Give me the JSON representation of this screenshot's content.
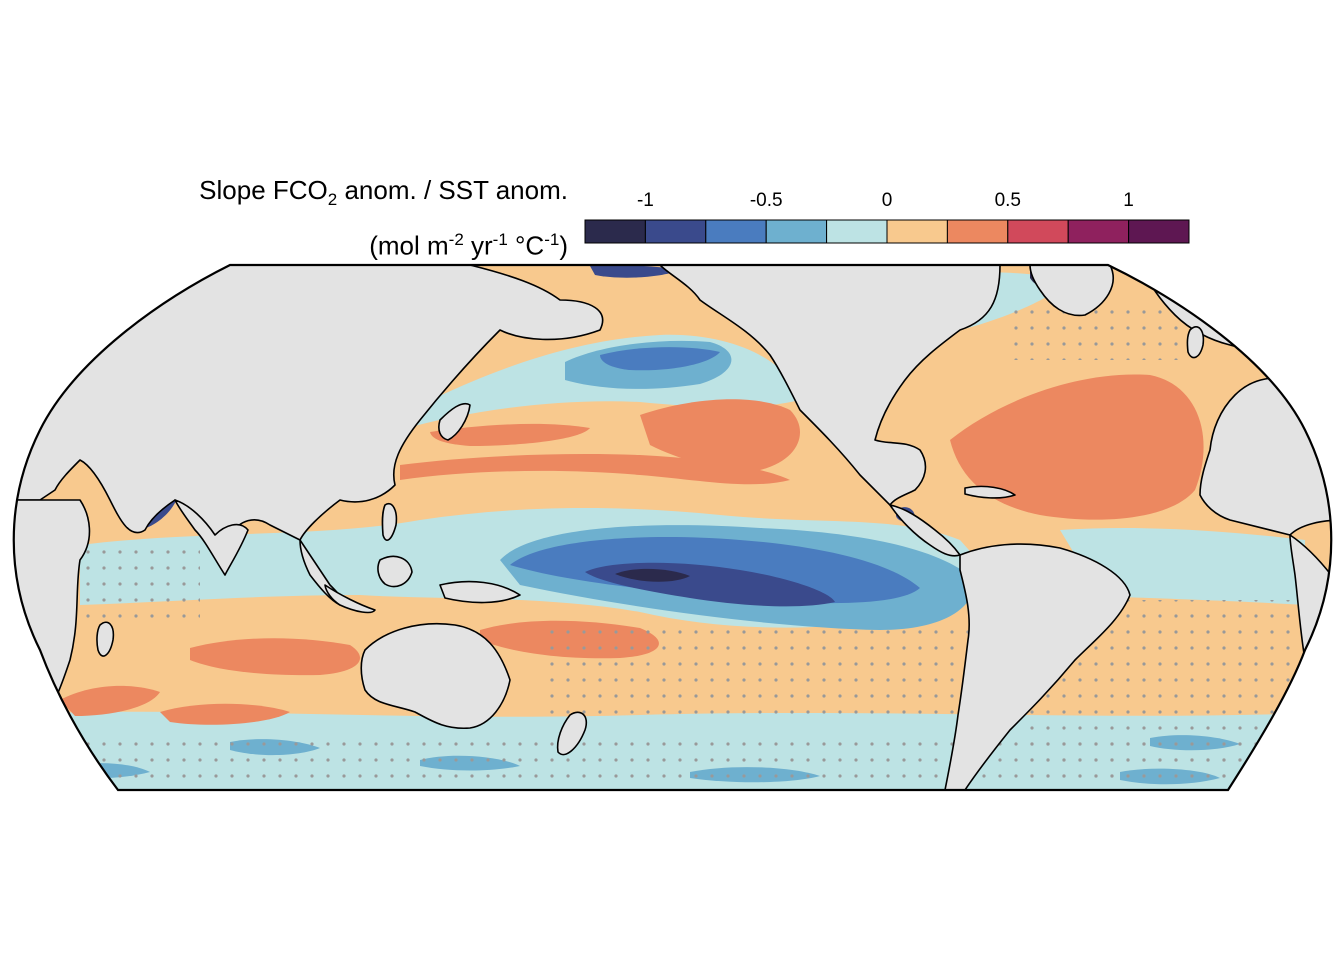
{
  "legend": {
    "title_line1": {
      "pre": "Slope FCO",
      "sub": "2",
      "post": " anom. / SST anom."
    },
    "title_line2": {
      "a": "(mol m",
      "sup1": "-2",
      "b": " yr",
      "sup2": "-1",
      "c": " °C",
      "sup3": "-1",
      "d": ")"
    },
    "ticks": [
      "-1",
      "-0.5",
      "0",
      "0.5",
      "1"
    ],
    "tick_values": [
      -1,
      -0.5,
      0,
      0.5,
      1
    ],
    "range": [
      -1.25,
      1.25
    ],
    "bins": [
      {
        "from": -1.25,
        "to": -1.0,
        "color": "#2b2a4c"
      },
      {
        "from": -1.0,
        "to": -0.75,
        "color": "#3a4a8c"
      },
      {
        "from": -0.75,
        "to": -0.5,
        "color": "#4a7cbf"
      },
      {
        "from": -0.5,
        "to": -0.25,
        "color": "#6eb0cf"
      },
      {
        "from": -0.25,
        "to": 0.0,
        "color": "#bde3e4"
      },
      {
        "from": 0.0,
        "to": 0.25,
        "color": "#f8c98e"
      },
      {
        "from": 0.25,
        "to": 0.5,
        "color": "#ec8860"
      },
      {
        "from": 0.5,
        "to": 0.75,
        "color": "#d1495b"
      },
      {
        "from": 0.75,
        "to": 1.0,
        "color": "#8f215e"
      },
      {
        "from": 1.0,
        "to": 1.25,
        "color": "#5e1752"
      }
    ]
  },
  "map": {
    "projection": "Equal Earth, Pacific-centered",
    "land_color": "#e3e3e3",
    "coast_color": "#000000",
    "stipple_color": "#999999"
  }
}
